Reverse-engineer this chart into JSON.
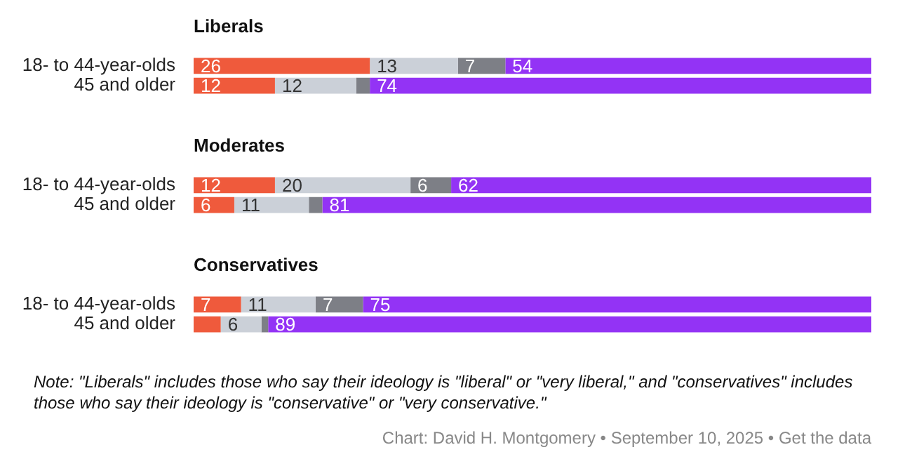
{
  "chart_data": [
    {
      "type": "bar",
      "orientation": "horizontal",
      "stacked": true,
      "title": "Liberals",
      "tick_labels": "y",
      "categories": [
        "18- to 44-year-olds",
        "45 and older"
      ],
      "series": [
        {
          "color": "#ef5a3c",
          "values": [
            26,
            12
          ],
          "value_labels": [
            "26",
            "12"
          ]
        },
        {
          "color": "#cbd0d8",
          "values": [
            13,
            12
          ],
          "value_labels": [
            "13",
            "12"
          ]
        },
        {
          "color": "#7d7f86",
          "values": [
            7,
            2
          ],
          "value_labels": [
            "7",
            null
          ]
        },
        {
          "color": "#9333f5",
          "values": [
            54,
            74
          ],
          "value_labels": [
            "54",
            "74"
          ]
        }
      ]
    },
    {
      "type": "bar",
      "orientation": "horizontal",
      "stacked": true,
      "title": "Moderates",
      "tick_labels": "y",
      "categories": [
        "18- to 44-year-olds",
        "45 and older"
      ],
      "series": [
        {
          "color": "#ef5a3c",
          "values": [
            12,
            6
          ],
          "value_labels": [
            "12",
            "6"
          ]
        },
        {
          "color": "#cbd0d8",
          "values": [
            20,
            11
          ],
          "value_labels": [
            "20",
            "11"
          ]
        },
        {
          "color": "#7d7f86",
          "values": [
            6,
            2
          ],
          "value_labels": [
            "6",
            null
          ]
        },
        {
          "color": "#9333f5",
          "values": [
            62,
            81
          ],
          "value_labels": [
            "62",
            "81"
          ]
        }
      ]
    },
    {
      "type": "bar",
      "orientation": "horizontal",
      "stacked": true,
      "title": "Conservatives",
      "tick_labels": "y",
      "categories": [
        "18- to 44-year-olds",
        "45 and older"
      ],
      "series": [
        {
          "color": "#ef5a3c",
          "values": [
            7,
            4
          ],
          "value_labels": [
            "7",
            null
          ]
        },
        {
          "color": "#cbd0d8",
          "values": [
            11,
            6
          ],
          "value_labels": [
            "11",
            "6"
          ]
        },
        {
          "color": "#7d7f86",
          "values": [
            7,
            1
          ],
          "value_labels": [
            "7",
            null
          ]
        },
        {
          "color": "#9333f5",
          "values": [
            75,
            89
          ],
          "value_labels": [
            "75",
            "89"
          ]
        }
      ],
      "annotations": [
        "Note: \"Liberals\" includes those who say their ideology is \"liberal\" or \"very liberal,\" and \"conservatives\" includes those who say their ideology is \"conservative\" or \"very conservative.\"",
        "Chart: David H. Montgomery • September 10, 2025 • Get the data"
      ]
    }
  ]
}
